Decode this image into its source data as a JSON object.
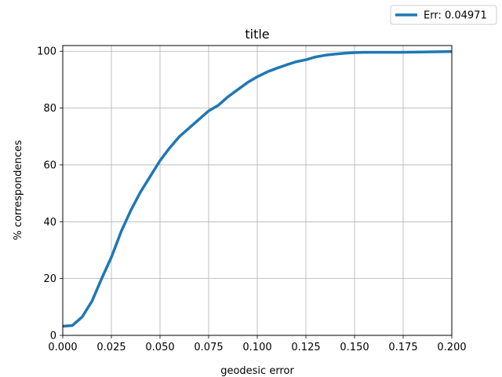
{
  "chart_data": {
    "type": "line",
    "title": "title",
    "xlabel": "geodesic error",
    "ylabel": "% correspondences",
    "xlim": [
      0,
      0.2
    ],
    "ylim": [
      0,
      102
    ],
    "grid": true,
    "legend_placement": "above-top-right",
    "x_ticks": [
      "0.000",
      "0.025",
      "0.050",
      "0.075",
      "0.100",
      "0.125",
      "0.150",
      "0.175",
      "0.200"
    ],
    "y_ticks": [
      "0",
      "20",
      "40",
      "60",
      "80",
      "100"
    ],
    "series": [
      {
        "name": "Err: 0.04971",
        "color": "#1f77b4",
        "x": [
          0.0,
          0.005,
          0.01,
          0.015,
          0.02,
          0.025,
          0.03,
          0.035,
          0.04,
          0.045,
          0.05,
          0.055,
          0.06,
          0.065,
          0.07,
          0.075,
          0.08,
          0.085,
          0.09,
          0.095,
          0.1,
          0.105,
          0.11,
          0.115,
          0.12,
          0.125,
          0.13,
          0.135,
          0.14,
          0.145,
          0.15,
          0.155,
          0.16,
          0.17,
          0.18,
          0.19,
          0.2
        ],
        "y": [
          3.2,
          3.5,
          6.5,
          12.0,
          20.0,
          27.5,
          36.5,
          44.0,
          50.5,
          56.0,
          61.5,
          66.0,
          70.0,
          73.0,
          76.0,
          79.0,
          81.0,
          84.0,
          86.5,
          89.0,
          91.0,
          92.7,
          94.0,
          95.2,
          96.3,
          97.0,
          98.0,
          98.6,
          99.0,
          99.3,
          99.5,
          99.6,
          99.6,
          99.6,
          99.7,
          99.8,
          99.9
        ]
      }
    ]
  }
}
